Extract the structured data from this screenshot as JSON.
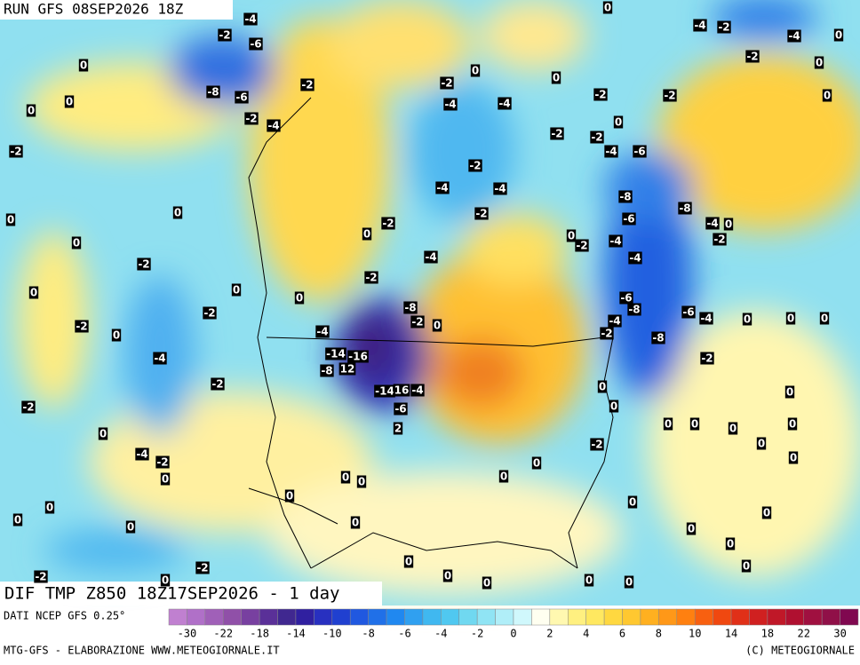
{
  "header": {
    "run": "RUN GFS 08SEP2026 18Z",
    "title": "DIF TMP Z850 18Z17SEP2026 - 1 day"
  },
  "footer": {
    "source": "DATI NCEP GFS 0.25°",
    "credit_left": "MTG-GFS - ELABORAZIONE WWW.METEOGIORNALE.IT",
    "credit_right": "(C) METEOGIORNALE"
  },
  "colorbar": {
    "ticks": [
      -30,
      -22,
      -18,
      -14,
      -10,
      -8,
      -6,
      -4,
      -2,
      0,
      2,
      4,
      6,
      8,
      10,
      14,
      18,
      22,
      30
    ],
    "colors": [
      "#c080d0",
      "#b070c8",
      "#a060b8",
      "#9050a8",
      "#7840a0",
      "#5a3098",
      "#402890",
      "#3020a0",
      "#2830c0",
      "#2040d0",
      "#2058e0",
      "#2070e8",
      "#2088f0",
      "#30a0f0",
      "#40b8f0",
      "#50c8f0",
      "#70d8f0",
      "#90e4f4",
      "#b0eef8",
      "#d0f8fc",
      "#fffff0",
      "#fff8b0",
      "#fff080",
      "#ffe860",
      "#ffd840",
      "#ffc830",
      "#ffb020",
      "#ff9818",
      "#ff8010",
      "#f86010",
      "#f04810",
      "#e03018",
      "#d02020",
      "#c01828",
      "#b01030",
      "#a01040",
      "#901048",
      "#800850"
    ]
  },
  "map": {
    "labels": [
      -4,
      -2,
      -6,
      0,
      -8,
      -6,
      -2,
      -4,
      -2,
      0,
      0,
      -2,
      0,
      0,
      0,
      -2,
      0,
      -2,
      -2,
      0,
      -4,
      -2,
      -2,
      0,
      -4,
      -2,
      0,
      0,
      0,
      0,
      -2,
      0,
      -2,
      0,
      0,
      0,
      -2,
      -2,
      -4,
      -8,
      -2,
      0,
      -4,
      -14,
      -16,
      12,
      -8,
      -14,
      16,
      -4,
      -6,
      2,
      0,
      0,
      0,
      0,
      0,
      0,
      0,
      0,
      0,
      -2,
      -4,
      -4,
      -2,
      -4,
      -4,
      -2,
      -2,
      -2,
      0,
      0,
      0,
      -2,
      -4,
      -6,
      -2,
      -8,
      -6,
      -8,
      -4,
      0,
      -2,
      -4,
      0,
      -2,
      -4,
      -6,
      -8,
      -6,
      -4,
      -8,
      -4,
      -2,
      -2,
      0,
      0,
      -2,
      0,
      0,
      0,
      0,
      0,
      0,
      0,
      0,
      0,
      0,
      0,
      0,
      0,
      0,
      0,
      0,
      0,
      -2,
      -4,
      -2,
      -4,
      0,
      0,
      0,
      0
    ]
  }
}
